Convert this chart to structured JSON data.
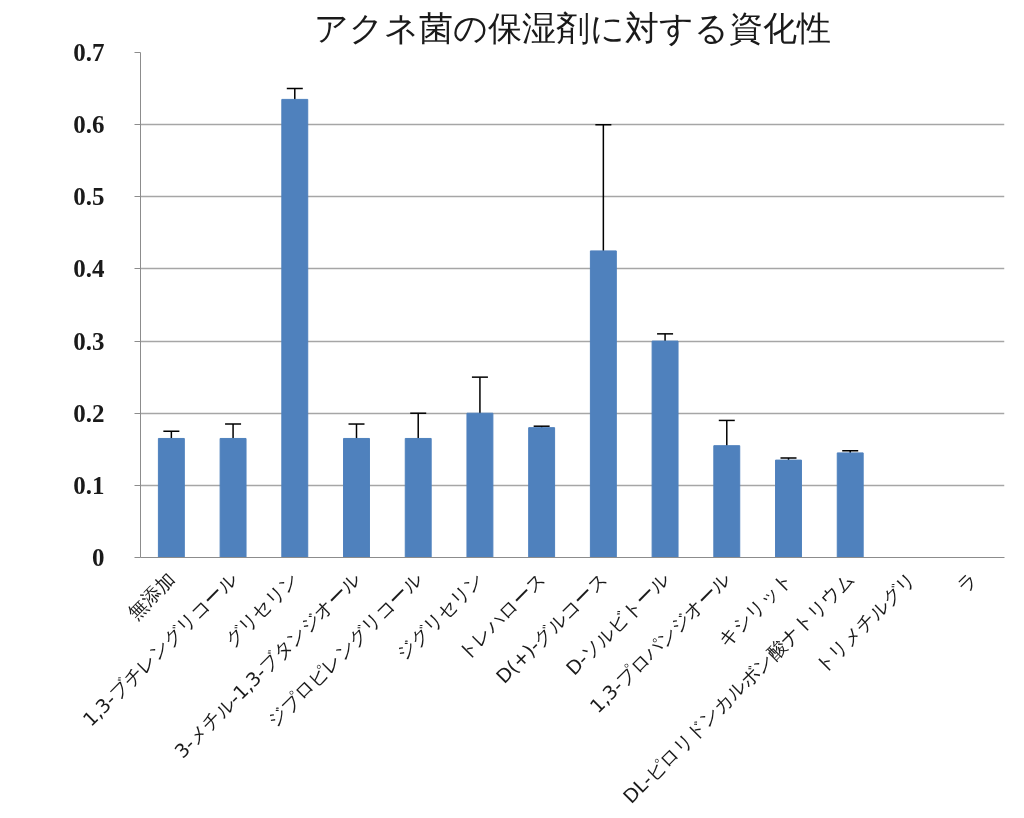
{
  "chart_data": {
    "type": "bar",
    "title": "アクネ菌の保湿剤に対する資化性",
    "categories": [
      "無添加",
      "1,3-ブチレングリコール",
      "グリセリン",
      "3-メチル-1,3-ブタンジオール",
      "ジプロピレングリコール",
      "ジグリセリン",
      "トレハロース",
      "D(+)-グルコース",
      "D-ソルビトール",
      "1,3-プロパンジオール",
      "キシリット",
      "DL-ピロリドンカルボン酸ナトリウム",
      "トリメチルグリ",
      "ラ"
    ],
    "values": [
      0.165,
      0.165,
      0.635,
      0.165,
      0.165,
      0.2,
      0.18,
      0.425,
      0.3,
      0.155,
      0.135,
      0.145,
      null,
      null
    ],
    "errors": [
      0.01,
      0.02,
      0.015,
      0.02,
      0.035,
      0.05,
      0.002,
      0.175,
      0.01,
      0.035,
      0.003,
      0.003,
      null,
      null
    ],
    "color": "#4f81bd",
    "ylim": [
      0,
      0.7
    ],
    "yticks": [
      0,
      0.1,
      0.2,
      0.3,
      0.4,
      0.5,
      0.6,
      0.7
    ],
    "grid": "y"
  }
}
